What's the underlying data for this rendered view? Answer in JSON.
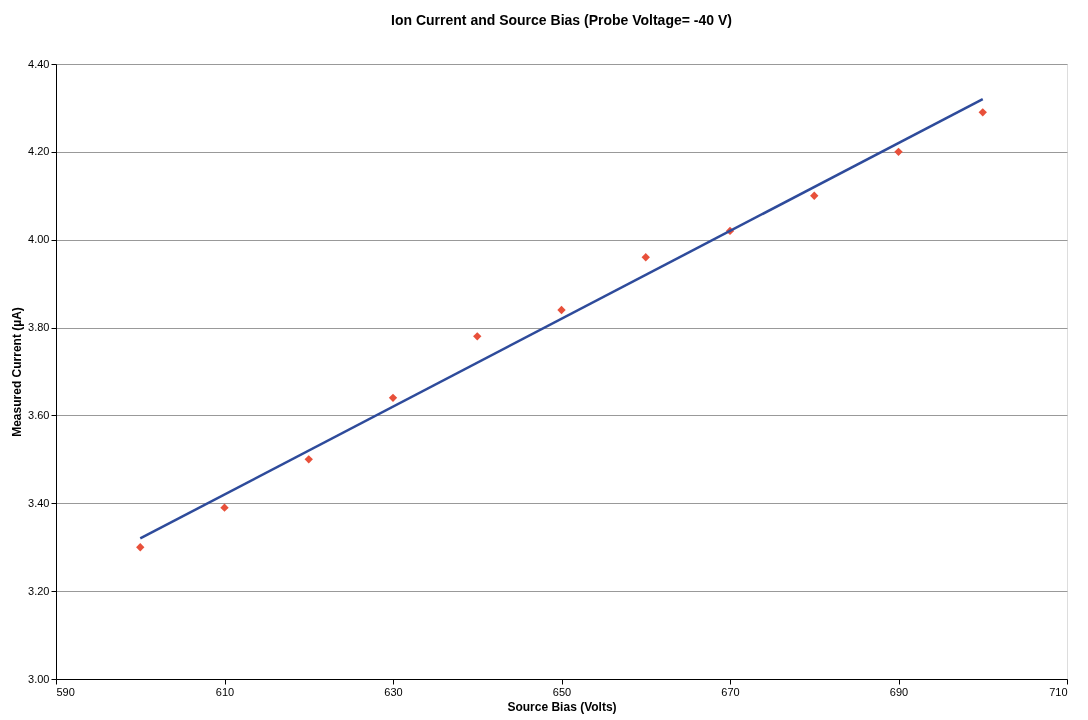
{
  "chart_data": {
    "type": "scatter",
    "title": "Ion Current and Source Bias (Probe Voltage= -40 V)",
    "xlabel": "Source Bias (Volts)",
    "ylabel": "Measured Current (µA)",
    "xlim": [
      590,
      710
    ],
    "xticks": [
      590,
      610,
      630,
      650,
      670,
      690,
      710
    ],
    "ylim": [
      3.0,
      4.4
    ],
    "yticks": [
      {
        "value": 3.0,
        "label": "3.00"
      },
      {
        "value": 3.2,
        "label": "3.20"
      },
      {
        "value": 3.4,
        "label": "3.40"
      },
      {
        "value": 3.6,
        "label": "3.60"
      },
      {
        "value": 3.8,
        "label": "3.80"
      },
      {
        "value": 4.0,
        "label": "4.00"
      },
      {
        "value": 4.2,
        "label": "4.20"
      },
      {
        "value": 4.4,
        "label": "4.40"
      }
    ],
    "grid": "y",
    "series": [
      {
        "marker": "diamond",
        "color": "#e8503a",
        "x": [
          600,
          610,
          620,
          630,
          640,
          650,
          660,
          670,
          680,
          690,
          700
        ],
        "values": [
          3.3,
          3.39,
          3.5,
          3.64,
          3.78,
          3.84,
          3.96,
          4.02,
          4.1,
          4.2,
          4.29
        ]
      },
      {
        "type": "line",
        "marker": "none",
        "line_style": "solid",
        "color": "#2e4b9b",
        "x": [
          600,
          700
        ],
        "values": [
          3.32,
          4.32
        ]
      }
    ]
  }
}
